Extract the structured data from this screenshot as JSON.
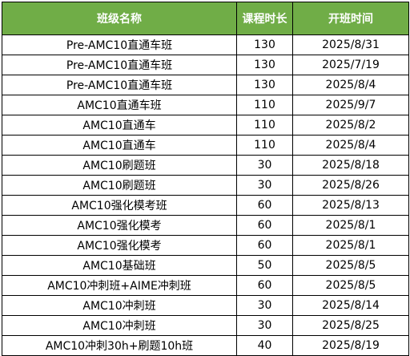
{
  "header": {
    "col_name": "班级名称",
    "col_hours": "课程时长",
    "col_start": "开班时间"
  },
  "colors": {
    "header_bg": "#70AD47",
    "header_text": "#FFFFFF",
    "border": "#000000"
  },
  "rows": [
    {
      "name": "Pre-AMC10直通车班",
      "hours": "130",
      "start": "2025/8/31"
    },
    {
      "name": "Pre-AMC10直通车班",
      "hours": "130",
      "start": "2025/7/19"
    },
    {
      "name": "Pre-AMC10直通车班",
      "hours": "130",
      "start": "2025/8/4"
    },
    {
      "name": "AMC10直通车班",
      "hours": "110",
      "start": "2025/9/7"
    },
    {
      "name": "AMC10直通车",
      "hours": "110",
      "start": "2025/8/2"
    },
    {
      "name": "AMC10直通车",
      "hours": "110",
      "start": "2025/8/4"
    },
    {
      "name": "AMC10刷题班",
      "hours": "30",
      "start": "2025/8/18"
    },
    {
      "name": "AMC10刷题班",
      "hours": "30",
      "start": "2025/8/26"
    },
    {
      "name": "AMC10强化模考班",
      "hours": "60",
      "start": "2025/8/13"
    },
    {
      "name": "AMC10强化模考",
      "hours": "60",
      "start": "2025/8/1"
    },
    {
      "name": "AMC10强化模考",
      "hours": "60",
      "start": "2025/8/1"
    },
    {
      "name": "AMC10基础班",
      "hours": "50",
      "start": "2025/8/5"
    },
    {
      "name": "AMC10冲刺班+AIME冲刺班",
      "hours": "60",
      "start": "2025/8/5"
    },
    {
      "name": "AMC10冲刺班",
      "hours": "30",
      "start": "2025/8/14"
    },
    {
      "name": "AMC10冲刺班",
      "hours": "30",
      "start": "2025/8/25"
    },
    {
      "name": "AMC10冲刺30h+刷题10h班",
      "hours": "40",
      "start": "2025/8/19"
    }
  ]
}
